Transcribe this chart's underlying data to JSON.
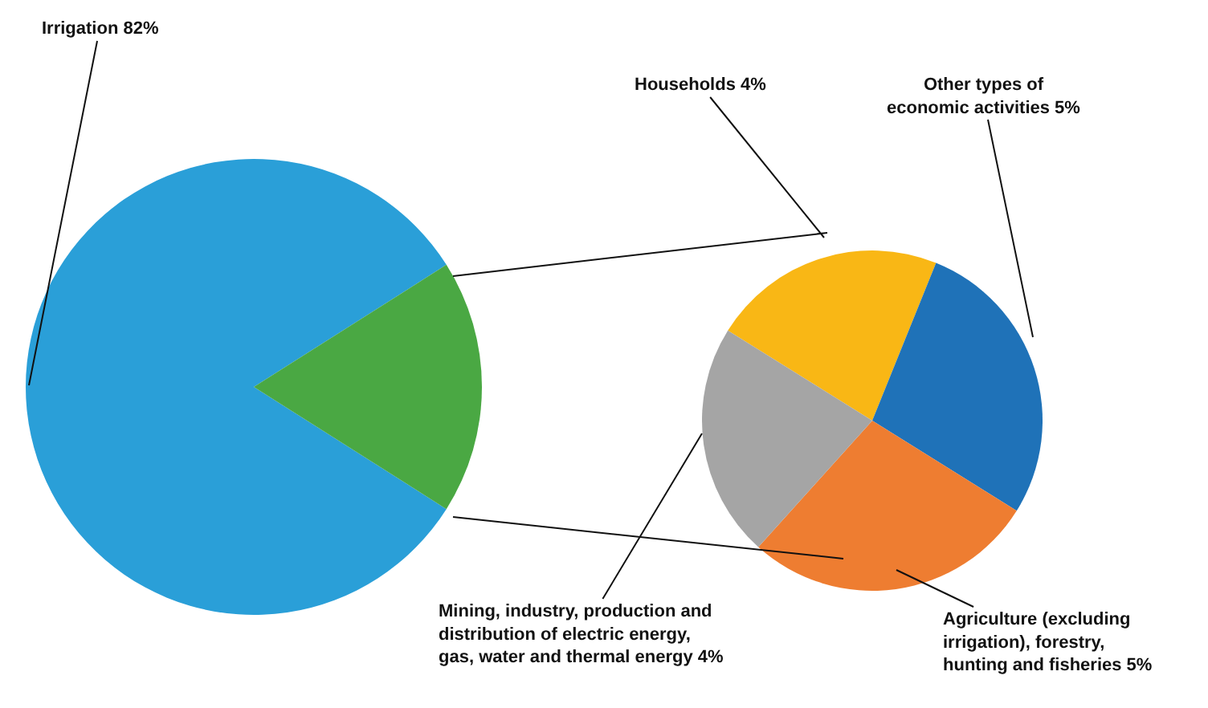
{
  "chart_data": [
    {
      "type": "pie",
      "categories": [
        "Irrigation",
        null
      ],
      "values": [
        82,
        18
      ],
      "colors": [
        "#2a9fd8",
        "#4aa843"
      ],
      "value_labels": [
        "82%",
        null
      ]
    },
    {
      "type": "pie",
      "categories": [
        "Households",
        "Other types of economic activities",
        "Agriculture (excluding irrigation), forestry, hunting and fisheries",
        "Mining, industry, production and distribution of electric energy, gas, water and thermal energy"
      ],
      "values": [
        4,
        5,
        5,
        4
      ],
      "colors": [
        "#f9b715",
        "#1f72b8",
        "#ee7d31",
        "#a5a5a5"
      ],
      "value_labels": [
        "4%",
        "5%",
        "5%",
        "4%"
      ]
    }
  ]
}
